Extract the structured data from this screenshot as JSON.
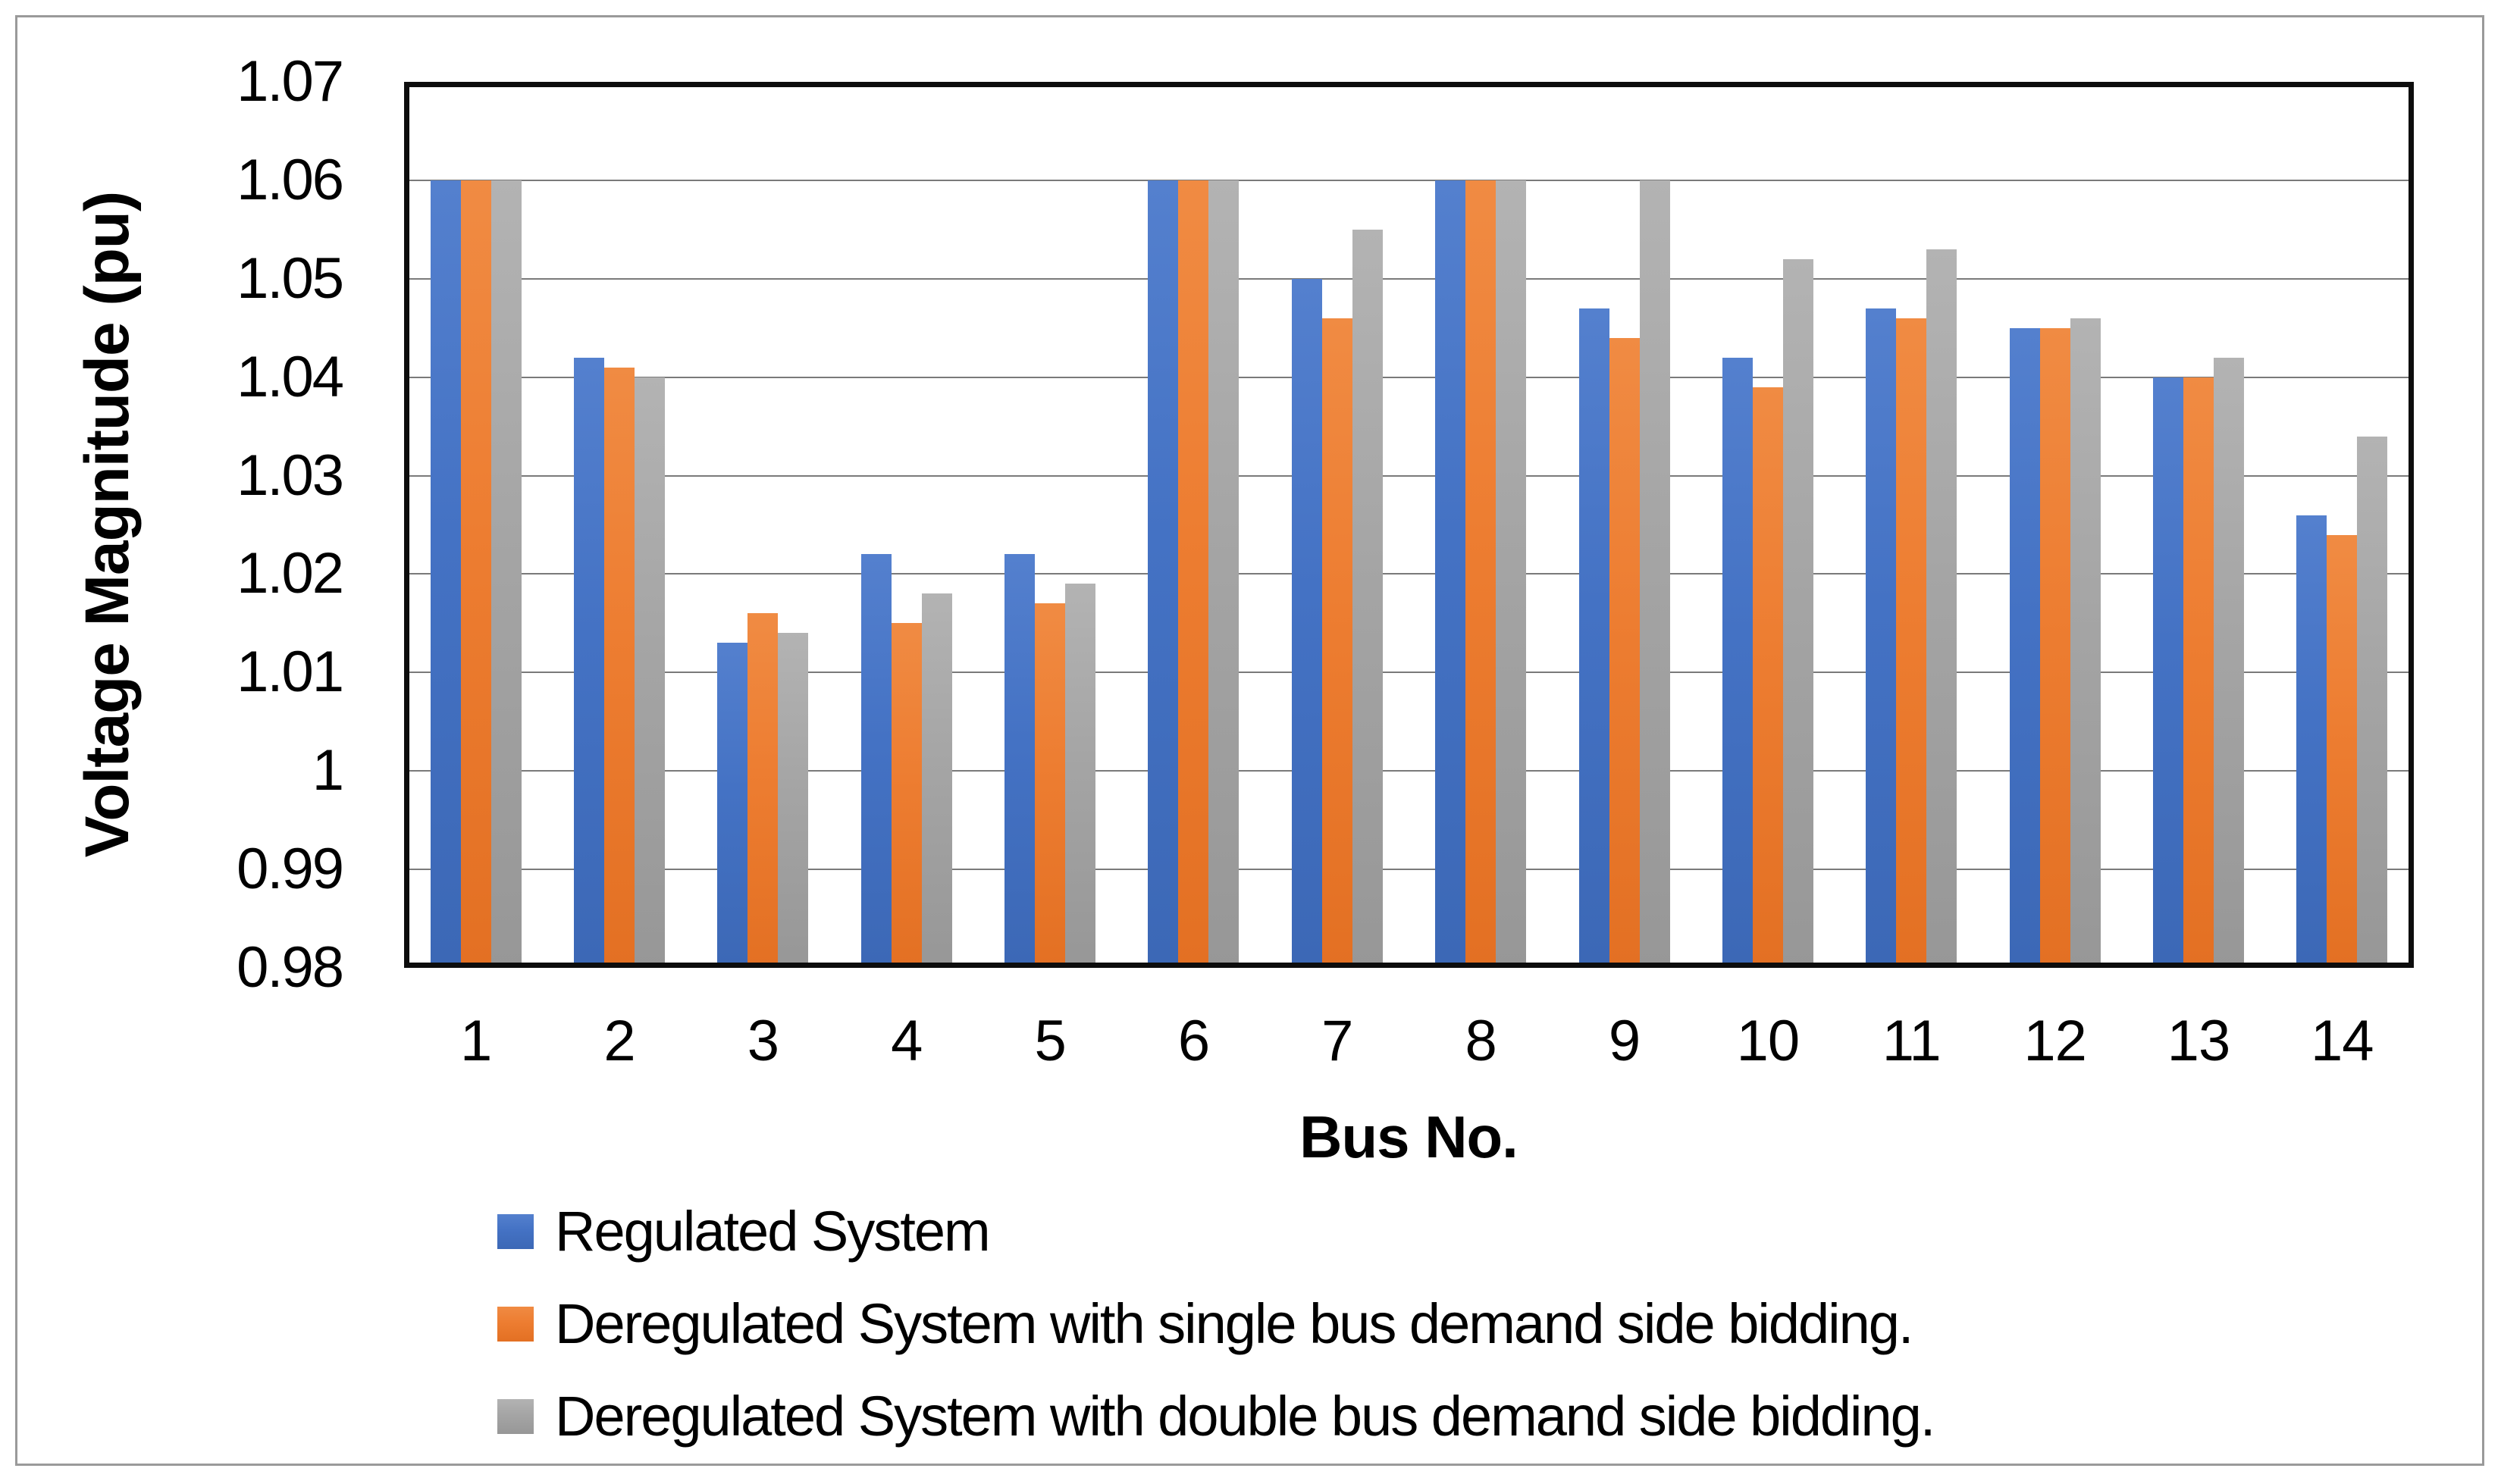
{
  "figure": {
    "background": "#ffffff",
    "frame_color": "#9a9a9a",
    "axis_box_color": "#0d0d0d",
    "gridline_color": "#7a7a7a",
    "text_color": "#000000"
  },
  "chart_data": {
    "type": "bar",
    "title": "",
    "xlabel": "Bus No.",
    "ylabel": "Voltage Magnitude (pu)",
    "categories": [
      "1",
      "2",
      "3",
      "4",
      "5",
      "6",
      "7",
      "8",
      "9",
      "10",
      "11",
      "12",
      "13",
      "14"
    ],
    "series": [
      {
        "id": "regulated",
        "name": "Regulated System",
        "color": "#4472C4",
        "color_light": "#5480CE",
        "color_dark": "#3C68B6",
        "values": [
          1.06,
          1.042,
          1.013,
          1.022,
          1.022,
          1.06,
          1.05,
          1.06,
          1.047,
          1.042,
          1.047,
          1.045,
          1.04,
          1.026
        ]
      },
      {
        "id": "single-bid",
        "name": "Deregulated System with single bus demand side bidding.",
        "color": "#ED7D31",
        "color_light": "#F08B43",
        "color_dark": "#E37023",
        "values": [
          1.06,
          1.041,
          1.016,
          1.015,
          1.017,
          1.06,
          1.046,
          1.06,
          1.044,
          1.039,
          1.046,
          1.045,
          1.04,
          1.024
        ]
      },
      {
        "id": "double-bid",
        "name": "Deregulated System with double bus demand side bidding.",
        "color": "#A5A5A5",
        "color_light": "#B3B3B3",
        "color_dark": "#979797",
        "values": [
          1.06,
          1.04,
          1.014,
          1.018,
          1.019,
          1.06,
          1.055,
          1.06,
          1.06,
          1.052,
          1.053,
          1.046,
          1.042,
          1.034
        ]
      }
    ],
    "ylim": [
      0.98,
      1.07
    ],
    "y_ticks": [
      {
        "label": "1.07",
        "value": 1.07
      },
      {
        "label": "1.06",
        "value": 1.06
      },
      {
        "label": "1.05",
        "value": 1.05
      },
      {
        "label": "1.04",
        "value": 1.04
      },
      {
        "label": "1.03",
        "value": 1.03
      },
      {
        "label": "1.02",
        "value": 1.02
      },
      {
        "label": "1.01",
        "value": 1.01
      },
      {
        "label": "1",
        "value": 1.0
      },
      {
        "label": "0.99",
        "value": 0.99
      },
      {
        "label": "0.98",
        "value": 0.98
      }
    ],
    "grid": true,
    "legend_position": "bottom-left"
  }
}
